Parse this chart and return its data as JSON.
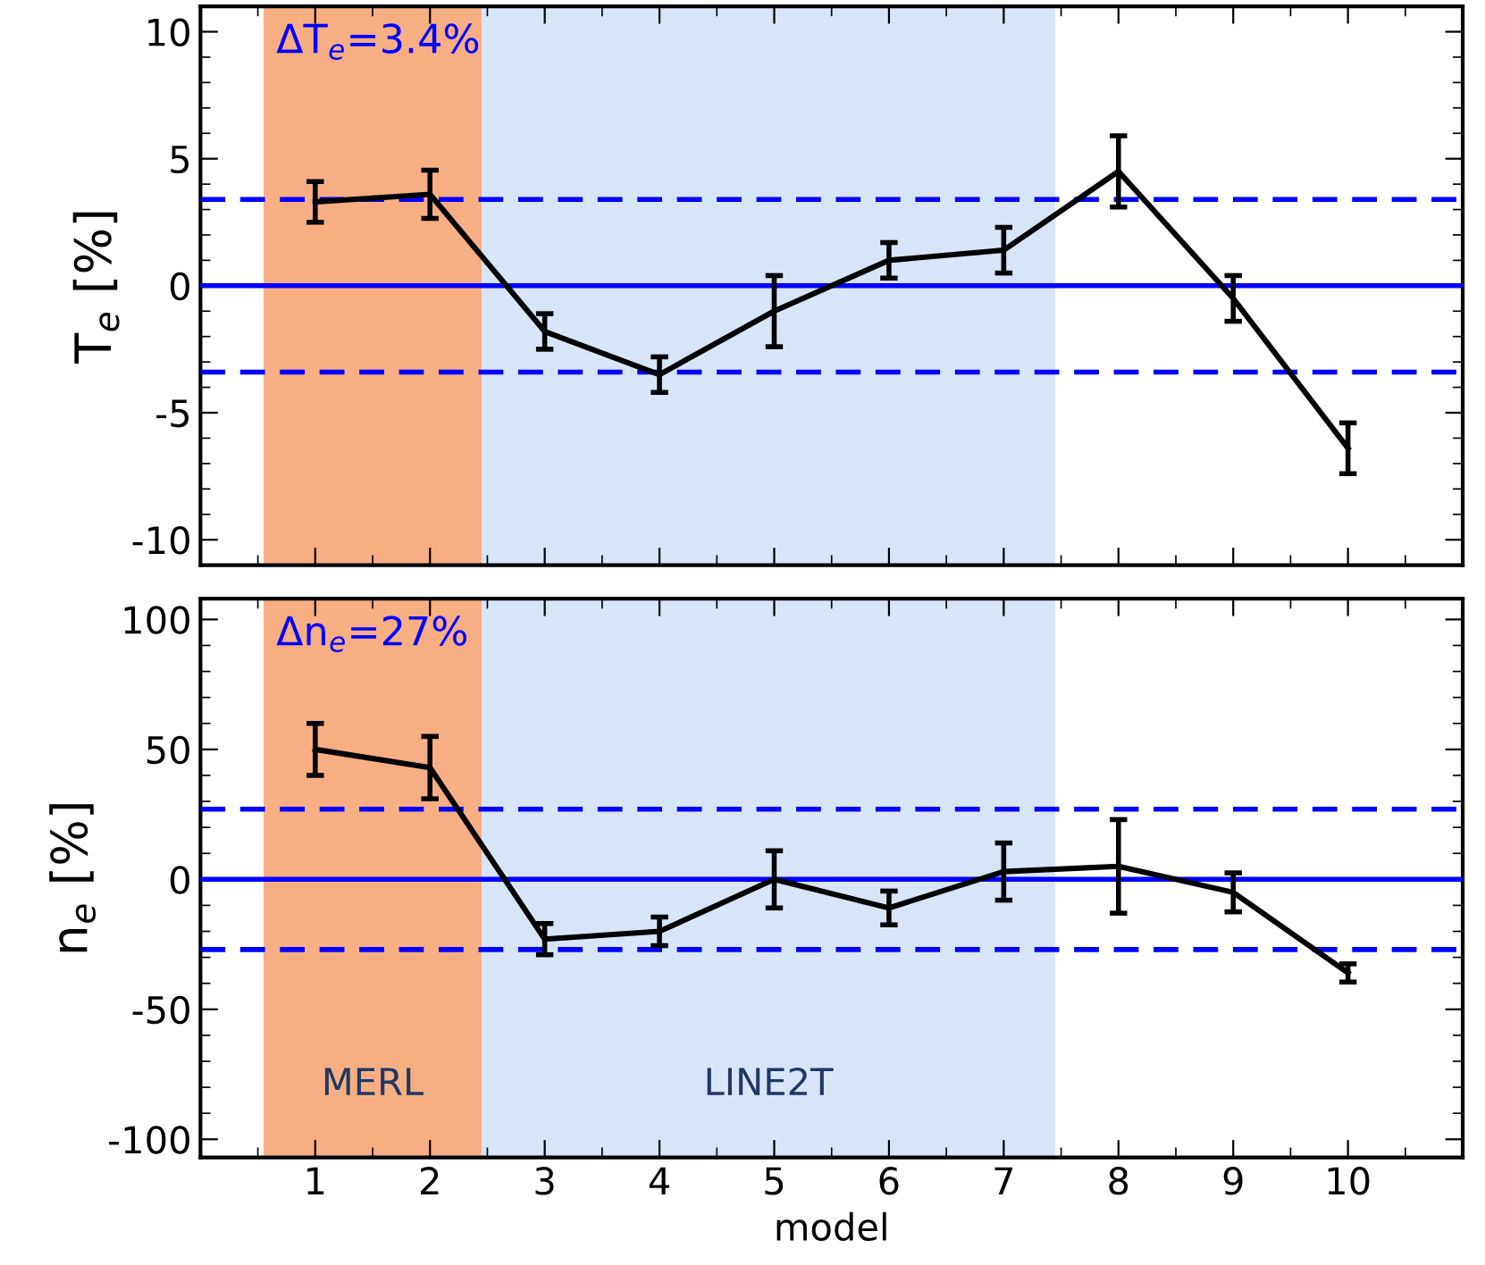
{
  "chart_data": [
    {
      "type": "line",
      "ylabel": "T$_{e}$ [%]",
      "annotations": [
        "ΔT$_{e}$=3.4%"
      ],
      "x": [
        1,
        2,
        3,
        4,
        5,
        6,
        7,
        8,
        9,
        10
      ],
      "series": [
        {
          "color": "#000000",
          "values": [
            3.3,
            3.6,
            -1.8,
            -3.5,
            -1.0,
            1.0,
            1.4,
            4.5,
            -0.5,
            -6.4
          ],
          "errors": [
            0.8,
            0.95,
            0.7,
            0.7,
            1.4,
            0.7,
            0.9,
            1.4,
            0.9,
            1.0
          ]
        }
      ],
      "xlim": [
        0,
        11
      ],
      "xticks": [
        1,
        2,
        3,
        4,
        5,
        6,
        7,
        8,
        9,
        10
      ],
      "ylim": [
        -11,
        11
      ],
      "yticks": [
        -10,
        -5,
        0,
        5,
        10
      ],
      "tick_labels": "y",
      "grid": false,
      "legend": false,
      "marker": "none",
      "line_style": "solid",
      "ref_lines": [
        {
          "axis": "y",
          "value": 0,
          "color": "#0000ff",
          "line_style": "solid"
        },
        {
          "axis": "y",
          "value": 3.4,
          "color": "#0000ff",
          "line_style": "dashed"
        },
        {
          "axis": "y",
          "value": -3.4,
          "color": "#0000ff",
          "line_style": "dashed"
        }
      ],
      "bands": [
        {
          "axis": "x",
          "from": 0.55,
          "to": 2.45,
          "color": "#f26b1d"
        },
        {
          "axis": "x",
          "from": 2.45,
          "to": 7.45,
          "color": "#b8d0f2"
        }
      ]
    },
    {
      "type": "line",
      "ylabel": "n$_{e}$ [%]",
      "xlabel": "model",
      "annotations": [
        "Δn$_{e}$=27%"
      ],
      "x": [
        1,
        2,
        3,
        4,
        5,
        6,
        7,
        8,
        9,
        10
      ],
      "series": [
        {
          "color": "#000000",
          "values": [
            50,
            43,
            -23,
            -20,
            0,
            -11,
            3,
            5,
            -5,
            -36
          ],
          "errors": [
            10,
            12,
            6,
            5.5,
            11,
            6.5,
            11,
            18,
            7.5,
            3.5
          ]
        }
      ],
      "xlim": [
        0,
        11
      ],
      "xticks": [
        1,
        2,
        3,
        4,
        5,
        6,
        7,
        8,
        9,
        10
      ],
      "ylim": [
        -107,
        108
      ],
      "yticks": [
        -100,
        -50,
        0,
        50,
        100
      ],
      "grid": false,
      "legend": false,
      "marker": "none",
      "line_style": "solid",
      "ref_lines": [
        {
          "axis": "y",
          "value": 0,
          "color": "#0000ff",
          "line_style": "solid"
        },
        {
          "axis": "y",
          "value": 27,
          "color": "#0000ff",
          "line_style": "dashed"
        },
        {
          "axis": "y",
          "value": -27,
          "color": "#0000ff",
          "line_style": "dashed"
        }
      ],
      "bands": [
        {
          "axis": "x",
          "from": 0.55,
          "to": 2.45,
          "color": "#f26b1d",
          "label": "MERL"
        },
        {
          "axis": "x",
          "from": 2.45,
          "to": 7.45,
          "color": "#b8d0f2",
          "label": "LINE2T"
        }
      ]
    }
  ]
}
